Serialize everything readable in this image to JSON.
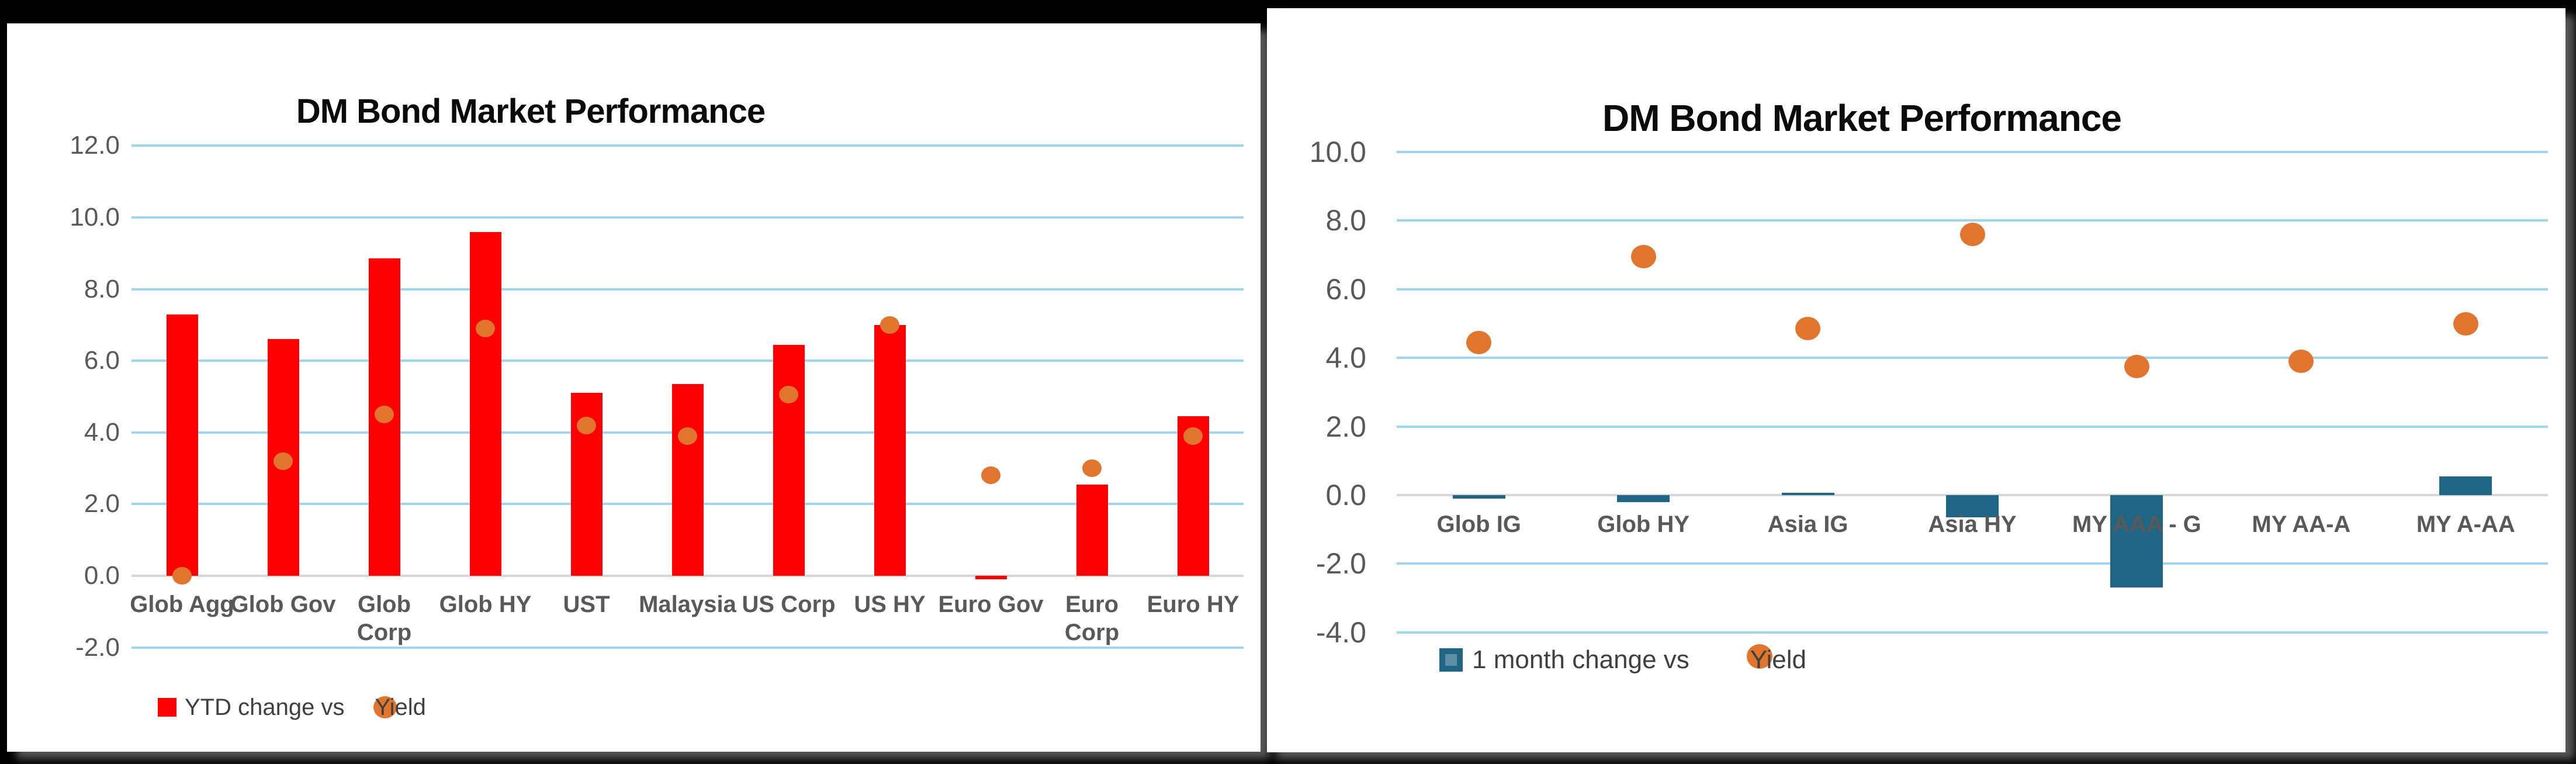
{
  "colors": {
    "background": "#000000",
    "panel": "#FFFFFF",
    "gridline_blue": "#9ED6F0",
    "zero_axis_gray": "#D7D7D7",
    "tick_text": "#595959",
    "category_text": "#595959",
    "title_text": "#0B0B0B",
    "legend_text": "#404040",
    "left_bar_red": "#FF0000",
    "right_bar_teal": "#1F6586",
    "yield_dot_orange": "#E2752E"
  },
  "chart_data": [
    {
      "type": "bar",
      "subtype": "bar-with-scatter-overlay",
      "title": "DM Bond Market Performance",
      "bar_color": "#FF0000",
      "dot_color": "#E2752E",
      "categories": [
        "Glob Agg",
        "Glob Gov",
        "Glob\nCorp",
        "Glob HY",
        "UST",
        "Malaysia",
        "US Corp",
        "US HY",
        "Euro Gov",
        "Euro\nCorp",
        "Euro HY"
      ],
      "series": [
        {
          "name": "YTD change vs",
          "type": "bar",
          "values": [
            7.3,
            6.6,
            8.85,
            9.6,
            5.1,
            5.35,
            6.45,
            7.0,
            -0.1,
            2.55,
            4.45
          ]
        },
        {
          "name": "Yield",
          "type": "scatter",
          "values": [
            0.0,
            3.2,
            4.5,
            6.9,
            4.2,
            3.9,
            5.05,
            7.0,
            2.8,
            3.0,
            3.9
          ]
        }
      ],
      "y_axis": {
        "ticks": [
          "12.0",
          "10.0",
          "8.0",
          "6.0",
          "4.0",
          "2.0",
          "0.0",
          "-2.0"
        ],
        "ylim": [
          -2.8,
          13.2
        ]
      },
      "grid": "horizontal-on",
      "legend_position": "bottom-left",
      "legend": {
        "bar_label": "YTD change vs",
        "dot_label": "Yield"
      }
    },
    {
      "type": "bar",
      "subtype": "bar-with-scatter-overlay",
      "title": "DM Bond Market Performance",
      "bar_color": "#1F6586",
      "dot_color": "#E2752E",
      "categories": [
        "Glob IG",
        "Glob HY",
        "Asia IG",
        "Asia HY",
        "MY AAA - G",
        "MY AA-A",
        "MY A-AA"
      ],
      "series": [
        {
          "name": "1 month change vs",
          "type": "bar",
          "values": [
            -0.1,
            -0.2,
            0.07,
            -0.65,
            -2.7,
            0.0,
            0.55
          ]
        },
        {
          "name": "Yield",
          "type": "scatter",
          "values": [
            4.45,
            6.95,
            4.85,
            7.6,
            3.75,
            3.9,
            5.0
          ]
        }
      ],
      "y_axis": {
        "ticks": [
          "10.0",
          "8.0",
          "6.0",
          "4.0",
          "2.0",
          "0.0",
          "-2.0",
          "-4.0"
        ],
        "ylim": [
          -5.4,
          11.0
        ]
      },
      "grid": "horizontal-on",
      "legend_position": "bottom-left",
      "legend": {
        "bar_label": "1 month change vs",
        "dot_label": "Yield"
      }
    }
  ]
}
